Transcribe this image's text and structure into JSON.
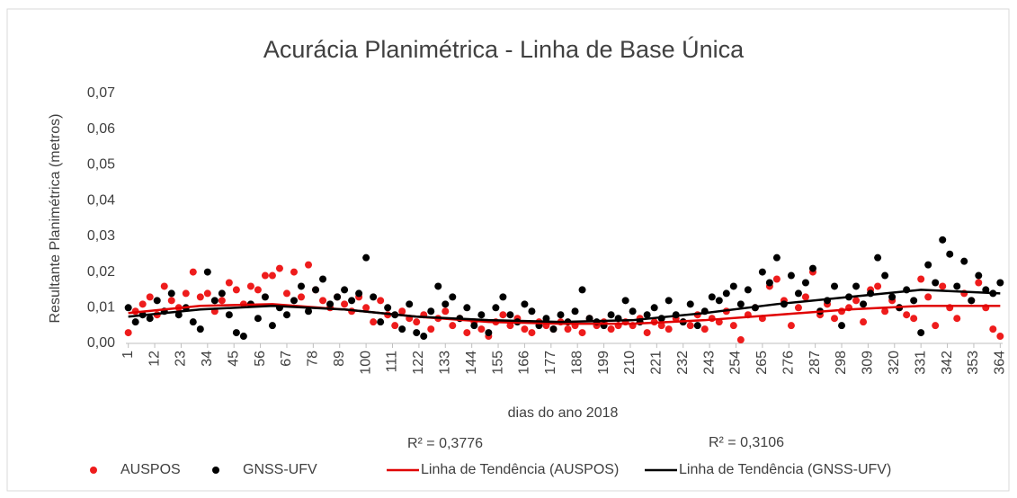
{
  "chart_data": {
    "type": "scatter",
    "title": "Acurácia Planimétrica - Linha de Base Única",
    "x_label": "dias do ano 2018",
    "y_label": "Resultante Planimétrica (metros)",
    "annotations": [
      "R² = 0,3776",
      "R² = 0,3106"
    ],
    "xlim": [
      0,
      365
    ],
    "xticks": [
      1,
      12,
      23,
      34,
      45,
      56,
      67,
      78,
      89,
      100,
      111,
      122,
      133,
      144,
      155,
      166,
      177,
      188,
      199,
      210,
      221,
      232,
      243,
      254,
      265,
      276,
      287,
      298,
      309,
      320,
      331,
      342,
      353,
      364
    ],
    "ylim": [
      0,
      0.07
    ],
    "yticks": [
      {
        "value": 0,
        "label": "0,00"
      },
      {
        "value": 0.01,
        "label": "0,01"
      },
      {
        "value": 0.02,
        "label": "0,02"
      },
      {
        "value": 0.03,
        "label": "0,03"
      },
      {
        "value": 0.04,
        "label": "0,04"
      },
      {
        "value": 0.05,
        "label": "0,05"
      },
      {
        "value": 0.06,
        "label": "0,06"
      },
      {
        "value": 0.07,
        "label": "0,07"
      }
    ],
    "grid": false,
    "legend": "bottom",
    "x": [
      1,
      4,
      7,
      10,
      13,
      16,
      19,
      22,
      25,
      28,
      31,
      34,
      37,
      40,
      43,
      46,
      49,
      52,
      55,
      58,
      61,
      64,
      67,
      70,
      73,
      76,
      79,
      82,
      85,
      88,
      91,
      94,
      97,
      100,
      103,
      106,
      109,
      112,
      115,
      118,
      121,
      124,
      127,
      130,
      133,
      136,
      139,
      142,
      145,
      148,
      151,
      154,
      157,
      160,
      163,
      166,
      169,
      172,
      175,
      178,
      181,
      184,
      187,
      190,
      193,
      196,
      199,
      202,
      205,
      208,
      211,
      214,
      217,
      220,
      223,
      226,
      229,
      232,
      235,
      238,
      241,
      244,
      247,
      250,
      253,
      256,
      259,
      262,
      265,
      268,
      271,
      274,
      277,
      280,
      283,
      286,
      289,
      292,
      295,
      298,
      301,
      304,
      307,
      310,
      313,
      316,
      319,
      322,
      325,
      328,
      331,
      334,
      337,
      340,
      343,
      346,
      349,
      352,
      355,
      358,
      361,
      364
    ],
    "series": [
      {
        "name": "AUSPOS",
        "type": "scatter",
        "color": "#ee1c1c",
        "values": [
          0.003,
          0.009,
          0.011,
          0.013,
          0.008,
          0.016,
          0.012,
          0.01,
          0.014,
          0.02,
          0.013,
          0.014,
          0.009,
          0.012,
          0.017,
          0.015,
          0.011,
          0.016,
          0.015,
          0.019,
          0.019,
          0.021,
          0.014,
          0.02,
          0.013,
          0.022,
          0.015,
          0.012,
          0.01,
          0.013,
          0.011,
          0.009,
          0.013,
          0.01,
          0.006,
          0.012,
          0.008,
          0.005,
          0.009,
          0.007,
          0.006,
          0.008,
          0.004,
          0.007,
          0.009,
          0.005,
          0.007,
          0.003,
          0.006,
          0.004,
          0.002,
          0.006,
          0.008,
          0.005,
          0.007,
          0.004,
          0.003,
          0.006,
          0.005,
          0.004,
          0.006,
          0.004,
          0.005,
          0.003,
          0.007,
          0.005,
          0.006,
          0.004,
          0.005,
          0.006,
          0.005,
          0.007,
          0.003,
          0.006,
          0.005,
          0.004,
          0.007,
          0.006,
          0.005,
          0.008,
          0.004,
          0.007,
          0.006,
          0.009,
          0.005,
          0.001,
          0.008,
          0.01,
          0.007,
          0.016,
          0.018,
          0.012,
          0.005,
          0.01,
          0.013,
          0.02,
          0.008,
          0.011,
          0.007,
          0.009,
          0.01,
          0.012,
          0.006,
          0.015,
          0.016,
          0.009,
          0.012,
          0.01,
          0.008,
          0.007,
          0.018,
          0.013,
          0.005,
          0.016,
          0.01,
          0.007,
          0.014,
          0.012,
          0.017,
          0.01,
          0.004,
          0.002
        ]
      },
      {
        "name": "GNSS-UFV",
        "type": "scatter",
        "color": "#000000",
        "values": [
          0.01,
          0.006,
          0.008,
          0.007,
          0.012,
          0.009,
          0.014,
          0.008,
          0.01,
          0.006,
          0.004,
          0.02,
          0.012,
          0.014,
          0.008,
          0.003,
          0.002,
          0.011,
          0.007,
          0.013,
          0.005,
          0.01,
          0.008,
          0.012,
          0.016,
          0.009,
          0.015,
          0.018,
          0.011,
          0.013,
          0.015,
          0.012,
          0.014,
          0.024,
          0.013,
          0.006,
          0.01,
          0.008,
          0.004,
          0.011,
          0.003,
          0.002,
          0.009,
          0.016,
          0.011,
          0.013,
          0.007,
          0.01,
          0.005,
          0.008,
          0.003,
          0.01,
          0.013,
          0.008,
          0.006,
          0.011,
          0.009,
          0.005,
          0.007,
          0.004,
          0.008,
          0.006,
          0.009,
          0.015,
          0.007,
          0.006,
          0.005,
          0.008,
          0.007,
          0.012,
          0.009,
          0.006,
          0.008,
          0.01,
          0.007,
          0.012,
          0.008,
          0.006,
          0.011,
          0.005,
          0.009,
          0.013,
          0.012,
          0.014,
          0.016,
          0.011,
          0.015,
          0.01,
          0.02,
          0.017,
          0.024,
          0.011,
          0.019,
          0.014,
          0.017,
          0.021,
          0.009,
          0.012,
          0.016,
          0.005,
          0.013,
          0.016,
          0.011,
          0.014,
          0.024,
          0.019,
          0.013,
          0.01,
          0.015,
          0.012,
          0.003,
          0.022,
          0.017,
          0.029,
          0.025,
          0.016,
          0.023,
          0.012,
          0.019,
          0.015,
          0.014,
          0.017
        ]
      },
      {
        "name": "Linha de Tendência (AUSPOS)",
        "type": "line",
        "color": "#e00000",
        "x": [
          1,
          31,
          61,
          91,
          121,
          151,
          181,
          211,
          241,
          271,
          301,
          331,
          364
        ],
        "values": [
          0.0085,
          0.0105,
          0.011,
          0.0095,
          0.0075,
          0.006,
          0.0055,
          0.0055,
          0.0065,
          0.008,
          0.0095,
          0.0105,
          0.0105
        ]
      },
      {
        "name": "Linha de Tendência (GNSS-UFV)",
        "type": "line",
        "color": "#000000",
        "x": [
          1,
          31,
          61,
          91,
          121,
          151,
          181,
          211,
          241,
          271,
          301,
          331,
          364
        ],
        "values": [
          0.0075,
          0.0095,
          0.0105,
          0.0095,
          0.0075,
          0.0065,
          0.006,
          0.0065,
          0.0085,
          0.011,
          0.013,
          0.015,
          0.014
        ]
      }
    ]
  }
}
